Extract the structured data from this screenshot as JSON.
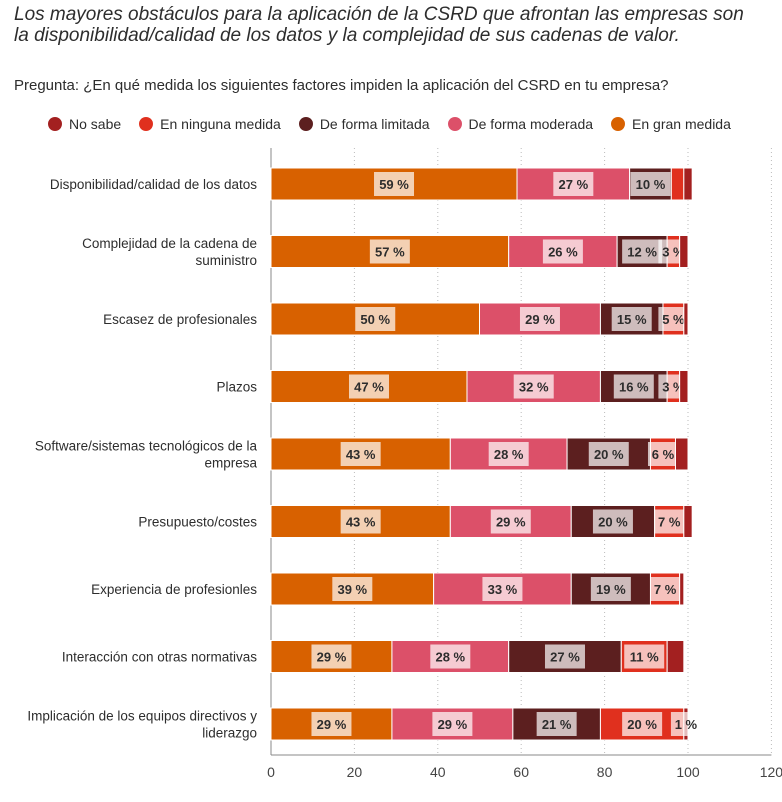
{
  "title": "Los mayores obstáculos para la aplicación de la CSRD que afrontan las empresas son la disponibilidad/calidad de los datos y la complejidad de sus cadenas de valor.",
  "question": "Pregunta: ¿En qué medida los siguientes factores impiden la aplicación del CSRD en tu empresa?",
  "chart_data": {
    "type": "bar",
    "orientation": "horizontal-stacked",
    "title": "Los mayores obstáculos para la aplicación de la CSRD que afrontan las empresas son la disponibilidad/calidad de los datos y la complejidad de sus cadenas de valor.",
    "xlim": [
      0,
      120
    ],
    "xticks": [
      0,
      20,
      40,
      60,
      80,
      100,
      120
    ],
    "grid": true,
    "legend_position": "top",
    "legend": [
      {
        "name": "No sabe",
        "color": "#a32020"
      },
      {
        "name": "En ninguna medida",
        "color": "#e0301e"
      },
      {
        "name": "De forma limitada",
        "color": "#5c1f1f"
      },
      {
        "name": "De forma moderada",
        "color": "#dc5069"
      },
      {
        "name": "En gran medida",
        "color": "#d86100"
      }
    ],
    "categories": [
      [
        "Disponibilidad/calidad de los datos"
      ],
      [
        "Complejidad de la cadena de",
        "suministro"
      ],
      [
        "Escasez de profesionales"
      ],
      [
        "Plazos"
      ],
      [
        "Software/sistemas tecnológicos de la",
        "empresa"
      ],
      [
        "Presupuesto/costes"
      ],
      [
        "Experiencia de profesionles"
      ],
      [
        "Interacción con otras normativas"
      ],
      [
        "Implicación de los equipos directivos y",
        "liderazgo"
      ]
    ],
    "series": [
      {
        "name": "En gran medida",
        "color": "#d86100",
        "values": [
          59,
          57,
          50,
          47,
          43,
          43,
          39,
          29,
          29
        ],
        "labels": [
          "59 %",
          "57 %",
          "50 %",
          "47 %",
          "43 %",
          "43 %",
          "39 %",
          "29 %",
          "29 %"
        ]
      },
      {
        "name": "De forma moderada",
        "color": "#dc5069",
        "values": [
          27,
          26,
          29,
          32,
          28,
          29,
          33,
          28,
          29
        ],
        "labels": [
          "27 %",
          "26 %",
          "29 %",
          "32 %",
          "28 %",
          "29 %",
          "33 %",
          "28 %",
          "29 %"
        ]
      },
      {
        "name": "De forma limitada",
        "color": "#5c1f1f",
        "values": [
          10,
          12,
          15,
          16,
          20,
          20,
          19,
          27,
          21
        ],
        "labels": [
          "10 %",
          "12 %",
          "15 %",
          "16 %",
          "20 %",
          "20 %",
          "19 %",
          "27 %",
          "21 %"
        ]
      },
      {
        "name": "En ninguna medida",
        "color": "#e0301e",
        "values": [
          3,
          3,
          5,
          3,
          6,
          7,
          7,
          11,
          20
        ],
        "labels": [
          null,
          "3 %",
          "5 %",
          "3 %",
          "6 %",
          "7 %",
          "7 %",
          "11 %",
          "20 %"
        ]
      },
      {
        "name": "No sabe",
        "color": "#a32020",
        "values": [
          2,
          2,
          1,
          2,
          3,
          2,
          1,
          4,
          1
        ],
        "labels": [
          null,
          null,
          null,
          null,
          null,
          null,
          null,
          null,
          "1 %"
        ]
      }
    ]
  }
}
